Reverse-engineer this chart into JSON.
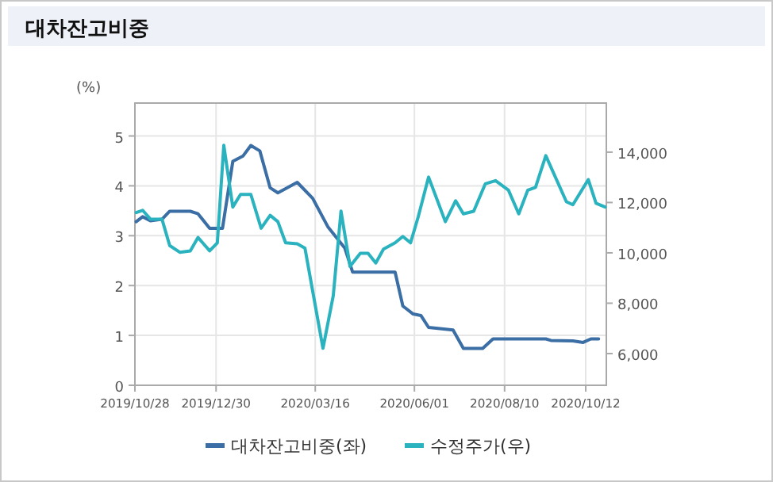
{
  "chart_data": {
    "type": "line",
    "title": "대차잔고비중",
    "ylabel": "(%)",
    "xlim": [
      "2019-10-28",
      "2020-10-28"
    ],
    "xticks": [
      {
        "value": "2019-10-28",
        "label": "2019/10/28"
      },
      {
        "value": "2019-12-30",
        "label": "2019/12/30"
      },
      {
        "value": "2020-03-16",
        "label": "2020/03/16"
      },
      {
        "value": "2020-06-01",
        "label": "2020/06/01"
      },
      {
        "value": "2020-08-10",
        "label": "2020/08/10"
      },
      {
        "value": "2020-10-12",
        "label": "2020/10/12"
      }
    ],
    "ylim": [
      0,
      5.66
    ],
    "yticks": [
      0,
      1,
      2,
      3,
      4,
      5
    ],
    "y2lim": [
      4740,
      15950
    ],
    "y2ticks": [
      {
        "value": 6000,
        "label": "6,000"
      },
      {
        "value": 8000,
        "label": "8,000"
      },
      {
        "value": 10000,
        "label": "10,000"
      },
      {
        "value": 12000,
        "label": "12,000"
      },
      {
        "value": 14000,
        "label": "14,000"
      }
    ],
    "grid": true,
    "legend": "bottom",
    "marker": "none",
    "line_style": "solid",
    "series": [
      {
        "name": "대차잔고비중(좌)",
        "color": "#3a6ea5",
        "x": [
          "2019-10-29",
          "2019-11-03",
          "2019-11-09",
          "2019-11-18",
          "2019-11-24",
          "2019-12-10",
          "2019-12-16",
          "2019-12-25",
          "2020-01-04",
          "2020-01-12",
          "2020-01-20",
          "2020-01-26",
          "2020-02-02",
          "2020-02-10",
          "2020-02-16",
          "2020-03-02",
          "2020-03-14",
          "2020-03-26",
          "2020-04-08",
          "2020-04-14",
          "2020-05-17",
          "2020-05-23",
          "2020-05-31",
          "2020-06-06",
          "2020-06-12",
          "2020-07-01",
          "2020-07-09",
          "2020-07-24",
          "2020-08-01",
          "2020-09-11",
          "2020-09-15",
          "2020-10-02",
          "2020-10-10",
          "2020-10-16",
          "2020-10-22"
        ],
        "values": [
          3.28,
          3.38,
          3.3,
          3.33,
          3.49,
          3.49,
          3.44,
          3.15,
          3.15,
          4.49,
          4.6,
          4.81,
          4.7,
          3.96,
          3.86,
          4.07,
          3.75,
          3.17,
          2.75,
          2.27,
          2.27,
          1.59,
          1.43,
          1.4,
          1.16,
          1.11,
          0.74,
          0.74,
          0.93,
          0.93,
          0.9,
          0.89,
          0.86,
          0.93,
          0.93
        ]
      },
      {
        "name": "수정주가(우)",
        "color": "#2ab3bf",
        "axis": "y2",
        "x": [
          "2019-10-29",
          "2019-11-03",
          "2019-11-09",
          "2019-11-18",
          "2019-11-24",
          "2019-12-02",
          "2019-12-10",
          "2019-12-16",
          "2019-12-25",
          "2019-12-31",
          "2020-01-05",
          "2020-01-12",
          "2020-01-18",
          "2020-01-26",
          "2020-02-03",
          "2020-02-10",
          "2020-02-16",
          "2020-02-22",
          "2020-03-02",
          "2020-03-08",
          "2020-03-22",
          "2020-03-30",
          "2020-04-05",
          "2020-04-12",
          "2020-04-20",
          "2020-04-26",
          "2020-05-02",
          "2020-05-08",
          "2020-05-17",
          "2020-05-23",
          "2020-05-29",
          "2020-06-04",
          "2020-06-12",
          "2020-06-25",
          "2020-07-03",
          "2020-07-09",
          "2020-07-17",
          "2020-07-26",
          "2020-08-03",
          "2020-08-13",
          "2020-08-21",
          "2020-08-28",
          "2020-09-03",
          "2020-09-11",
          "2020-09-27",
          "2020-10-02",
          "2020-10-14",
          "2020-10-20",
          "2020-10-27"
        ],
        "values": [
          11600,
          11690,
          11340,
          11340,
          10290,
          10020,
          10080,
          10610,
          10080,
          10400,
          14270,
          11820,
          12320,
          12320,
          10980,
          11490,
          11240,
          10400,
          10360,
          10190,
          6210,
          8300,
          11660,
          9460,
          9980,
          9980,
          9600,
          10150,
          10400,
          10650,
          10400,
          11440,
          13010,
          11240,
          12070,
          11550,
          11650,
          12740,
          12870,
          12490,
          11550,
          12490,
          12600,
          13860,
          12030,
          11910,
          12910,
          11970,
          11820
        ]
      }
    ]
  }
}
